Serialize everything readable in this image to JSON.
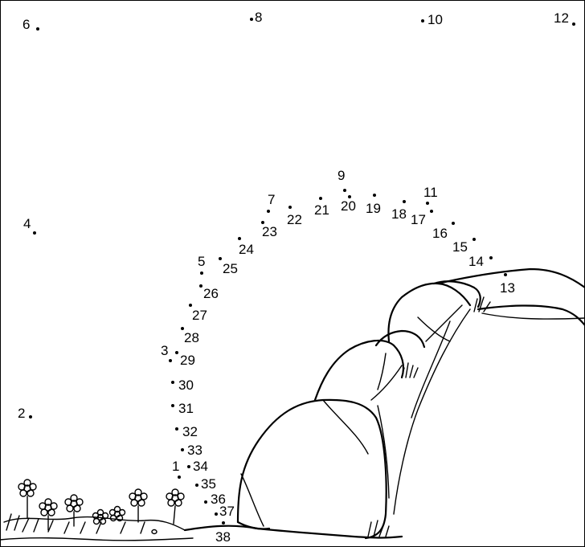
{
  "puzzle": {
    "type": "connect-the-dots",
    "border_color": "#000000",
    "ink_color": "#000000",
    "background_color": "#ffffff",
    "dots": [
      {
        "n": "1"
      },
      {
        "n": "2"
      },
      {
        "n": "3"
      },
      {
        "n": "4"
      },
      {
        "n": "5"
      },
      {
        "n": "6"
      },
      {
        "n": "7"
      },
      {
        "n": "8"
      },
      {
        "n": "9"
      },
      {
        "n": "10"
      },
      {
        "n": "11"
      },
      {
        "n": "12"
      },
      {
        "n": "13"
      },
      {
        "n": "14"
      },
      {
        "n": "15"
      },
      {
        "n": "16"
      },
      {
        "n": "17"
      },
      {
        "n": "18"
      },
      {
        "n": "19"
      },
      {
        "n": "20"
      },
      {
        "n": "21"
      },
      {
        "n": "22"
      },
      {
        "n": "23"
      },
      {
        "n": "24"
      },
      {
        "n": "25"
      },
      {
        "n": "26"
      },
      {
        "n": "27"
      },
      {
        "n": "28"
      },
      {
        "n": "29"
      },
      {
        "n": "30"
      },
      {
        "n": "31"
      },
      {
        "n": "32"
      },
      {
        "n": "33"
      },
      {
        "n": "34"
      },
      {
        "n": "35"
      },
      {
        "n": "36"
      },
      {
        "n": "37"
      },
      {
        "n": "38"
      }
    ],
    "illustration": {
      "subjects": [
        "rock-arch",
        "flowers",
        "grass-tufts"
      ]
    }
  }
}
